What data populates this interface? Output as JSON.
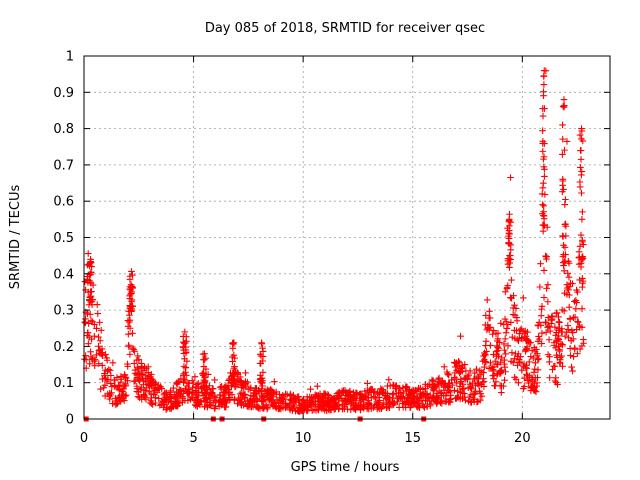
{
  "chart_data": {
    "type": "scatter",
    "title": "Day 085 of 2018, SRMTID for receiver qsec",
    "xlabel": "GPS time / hours",
    "ylabel": "SRMTID / TECUs",
    "xlim": [
      0,
      24
    ],
    "ylim": [
      0,
      1
    ],
    "xticks": [
      "0",
      "5",
      "10",
      "15",
      "20"
    ],
    "yticks": [
      "0",
      "0.1",
      "0.2",
      "0.3",
      "0.4",
      "0.5",
      "0.6",
      "0.7",
      "0.8",
      "0.9",
      "1"
    ],
    "grid": true,
    "marker": "plus",
    "color": "#ff0000",
    "profile": [
      [
        0.0,
        0.15
      ],
      [
        0.1,
        0.3
      ],
      [
        0.2,
        0.36
      ],
      [
        0.35,
        0.3
      ],
      [
        0.5,
        0.26
      ],
      [
        0.7,
        0.2
      ],
      [
        0.9,
        0.14
      ],
      [
        1.1,
        0.12
      ],
      [
        1.3,
        0.09
      ],
      [
        1.6,
        0.08
      ],
      [
        1.9,
        0.1
      ],
      [
        2.05,
        0.28
      ],
      [
        2.2,
        0.3
      ],
      [
        2.4,
        0.13
      ],
      [
        2.7,
        0.11
      ],
      [
        3.0,
        0.09
      ],
      [
        3.4,
        0.07
      ],
      [
        3.8,
        0.05
      ],
      [
        4.2,
        0.07
      ],
      [
        4.6,
        0.09
      ],
      [
        5.0,
        0.08
      ],
      [
        5.5,
        0.07
      ],
      [
        6.0,
        0.06
      ],
      [
        6.5,
        0.07
      ],
      [
        6.9,
        0.1
      ],
      [
        7.2,
        0.08
      ],
      [
        7.6,
        0.07
      ],
      [
        8.0,
        0.06
      ],
      [
        8.5,
        0.06
      ],
      [
        9.0,
        0.05
      ],
      [
        9.5,
        0.05
      ],
      [
        10.0,
        0.04
      ],
      [
        10.5,
        0.05
      ],
      [
        11.0,
        0.05
      ],
      [
        11.5,
        0.05
      ],
      [
        12.0,
        0.06
      ],
      [
        12.5,
        0.05
      ],
      [
        13.0,
        0.06
      ],
      [
        13.5,
        0.06
      ],
      [
        14.0,
        0.07
      ],
      [
        14.5,
        0.07
      ],
      [
        15.0,
        0.06
      ],
      [
        15.5,
        0.07
      ],
      [
        16.0,
        0.08
      ],
      [
        16.5,
        0.09
      ],
      [
        17.0,
        0.12
      ],
      [
        17.3,
        0.11
      ],
      [
        17.6,
        0.1
      ],
      [
        17.9,
        0.09
      ],
      [
        18.2,
        0.12
      ],
      [
        18.4,
        0.25
      ],
      [
        18.6,
        0.19
      ],
      [
        18.9,
        0.16
      ],
      [
        19.1,
        0.14
      ],
      [
        19.3,
        0.32
      ],
      [
        19.4,
        0.42
      ],
      [
        19.55,
        0.27
      ],
      [
        19.8,
        0.19
      ],
      [
        20.1,
        0.18
      ],
      [
        20.4,
        0.16
      ],
      [
        20.7,
        0.15
      ],
      [
        20.9,
        0.45
      ],
      [
        21.05,
        0.6
      ],
      [
        21.2,
        0.25
      ],
      [
        21.5,
        0.22
      ],
      [
        21.8,
        0.19
      ],
      [
        21.95,
        0.48
      ],
      [
        22.1,
        0.32
      ],
      [
        22.3,
        0.29
      ],
      [
        22.5,
        0.24
      ],
      [
        22.65,
        0.43
      ],
      [
        22.8,
        0.35
      ]
    ],
    "spikes": [
      [
        0.3,
        0.44
      ],
      [
        2.15,
        0.37
      ],
      [
        4.6,
        0.24
      ],
      [
        5.5,
        0.18
      ],
      [
        6.8,
        0.21
      ],
      [
        8.1,
        0.21
      ],
      [
        19.4,
        0.55
      ],
      [
        21.0,
        0.96
      ],
      [
        21.9,
        0.88
      ],
      [
        22.7,
        0.8
      ]
    ],
    "flagged_points_x": [
      0.1,
      5.9,
      6.3,
      8.2,
      12.6,
      15.5
    ],
    "point_count": 1700
  }
}
